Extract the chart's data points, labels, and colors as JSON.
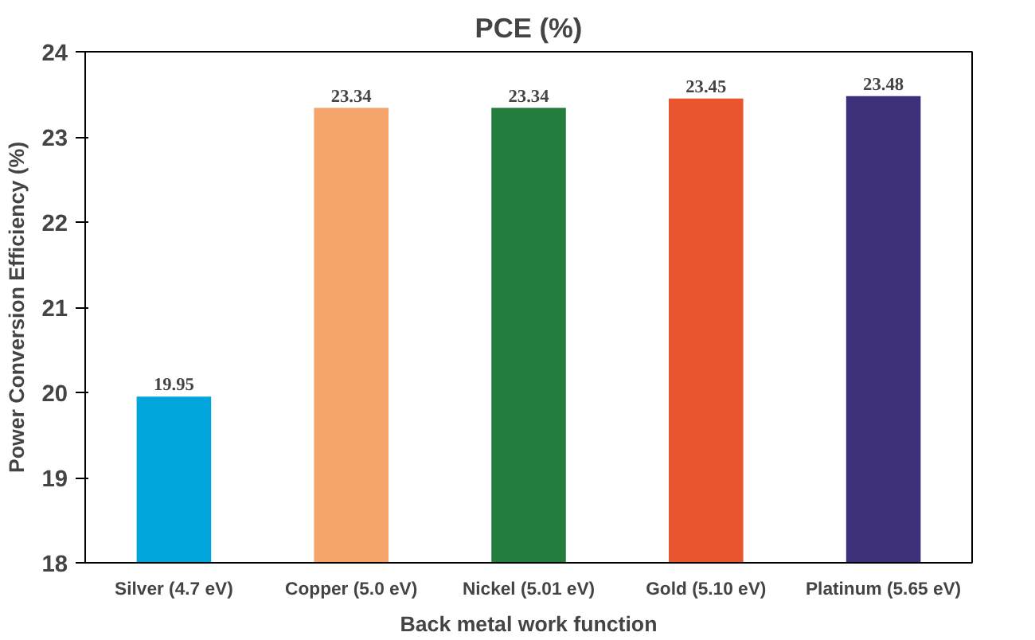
{
  "chart_data": {
    "type": "bar",
    "title": "PCE (%)",
    "xlabel": "Back metal work function",
    "ylabel": "Power Conversion Efficiency (%)",
    "categories": [
      "Silver (4.7 eV)",
      "Copper (5.0 eV)",
      "Nickel (5.01 eV)",
      "Gold (5.10 eV)",
      "Platinum (5.65 eV)"
    ],
    "values": [
      19.95,
      23.34,
      23.34,
      23.45,
      23.48
    ],
    "colors": [
      "#00a5dc",
      "#f5a46c",
      "#237d3d",
      "#e8552f",
      "#3e2f7b"
    ],
    "ylim": [
      18,
      24
    ],
    "yticks": [
      18,
      19,
      20,
      21,
      22,
      23,
      24
    ],
    "data_labels": true,
    "grid": false
  }
}
